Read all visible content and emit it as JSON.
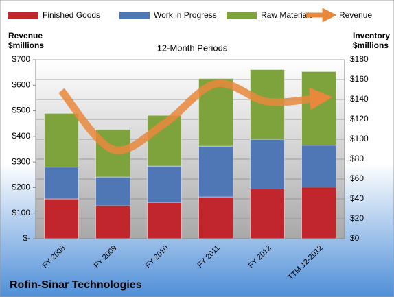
{
  "chart_data": {
    "type": "stacked-bar-line",
    "title": "12-Month Periods",
    "company": "Rofin-Sinar Technologies",
    "ylabel": [
      "Revenue",
      "$millions"
    ],
    "y2label": [
      "Inventory",
      "$millions"
    ],
    "categories": [
      "FY 2008",
      "FY 2009",
      "FY 2010",
      "FY 2011",
      "FY 2012",
      "TTM 12-2012"
    ],
    "series": [
      {
        "name": "Finished Goods",
        "color": "#c0262c",
        "axis": "y2",
        "values": [
          40,
          33,
          36.5,
          42,
          50,
          52
        ]
      },
      {
        "name": "Work in Progress",
        "color": "#4f76b5",
        "axis": "y2",
        "values": [
          32,
          29,
          36.5,
          51,
          50,
          42
        ]
      },
      {
        "name": "Raw Materials",
        "color": "#7ea23c",
        "axis": "y2",
        "values": [
          54,
          48,
          51,
          68,
          70,
          74
        ]
      },
      {
        "name": "Revenue",
        "color": "#e8883c",
        "axis": "y",
        "values": [
          579,
          349,
          450,
          606,
          536,
          550
        ]
      }
    ],
    "ylim": [
      0,
      700
    ],
    "yticks": [
      {
        "value": 0,
        "label": "$-"
      },
      {
        "value": 100,
        "label": "$100"
      },
      {
        "value": 200,
        "label": "$200"
      },
      {
        "value": 300,
        "label": "$300"
      },
      {
        "value": 400,
        "label": "$400"
      },
      {
        "value": 500,
        "label": "$500"
      },
      {
        "value": 600,
        "label": "$600"
      },
      {
        "value": 700,
        "label": "$700"
      }
    ],
    "y2lim": [
      0,
      180
    ],
    "y2ticks": [
      {
        "value": 0,
        "label": "$0"
      },
      {
        "value": 20,
        "label": "$20"
      },
      {
        "value": 40,
        "label": "$40"
      },
      {
        "value": 60,
        "label": "$60"
      },
      {
        "value": 80,
        "label": "$80"
      },
      {
        "value": 100,
        "label": "$100"
      },
      {
        "value": 120,
        "label": "$120"
      },
      {
        "value": 140,
        "label": "$140"
      },
      {
        "value": 160,
        "label": "$160"
      },
      {
        "value": 180,
        "label": "$180"
      }
    ],
    "grid": true
  }
}
